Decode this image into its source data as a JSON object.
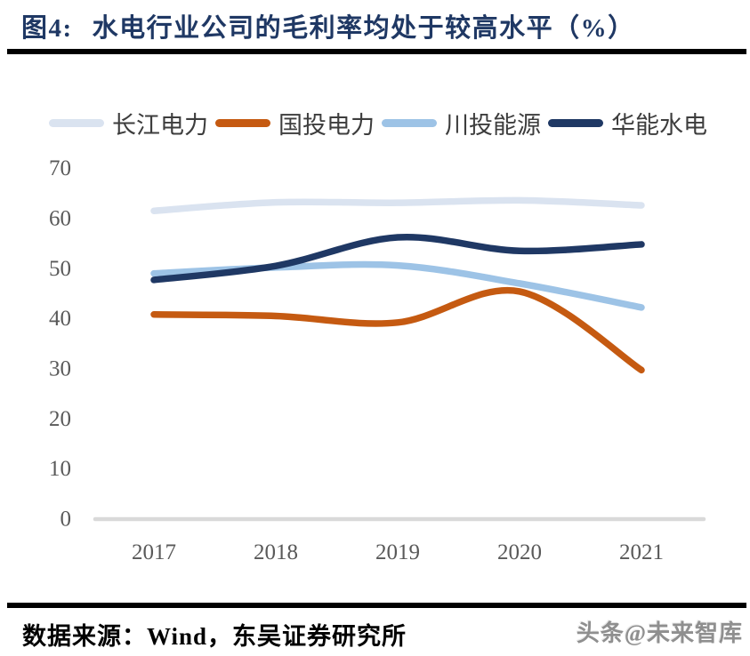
{
  "header": {
    "caption_prefix": "图4:",
    "title": "水电行业公司的毛利率均处于较高水平（%）"
  },
  "footer": {
    "source": "数据来源：Wind，东吴证券研究所",
    "watermark": "头条@未来智库"
  },
  "colors": {
    "title_navy": "#1F3864",
    "rule_black": "#000000",
    "axis_text": "#595959",
    "baseline": "#D9D9D9"
  },
  "chart_data": {
    "type": "line",
    "title": "水电行业公司的毛利率均处于较高水平（%）",
    "xlabel": "",
    "ylabel": "",
    "x": [
      "2017",
      "2018",
      "2019",
      "2020",
      "2021"
    ],
    "series": [
      {
        "name": "长江电力",
        "color": "#DAE3F0",
        "values": [
          61.3,
          63.0,
          62.9,
          63.4,
          62.4
        ]
      },
      {
        "name": "国投电力",
        "color": "#C55A11",
        "values": [
          40.6,
          40.3,
          39.0,
          45.2,
          29.5
        ]
      },
      {
        "name": "川投能源",
        "color": "#9DC3E6",
        "values": [
          48.8,
          50.0,
          50.4,
          46.8,
          42.0
        ]
      },
      {
        "name": "华能水电",
        "color": "#1F3864",
        "values": [
          47.5,
          50.3,
          56.0,
          53.3,
          54.6
        ]
      }
    ],
    "ylim": [
      0,
      70
    ],
    "ytick_step": 10,
    "grid": false,
    "smooth": true,
    "legend_position": "top"
  }
}
